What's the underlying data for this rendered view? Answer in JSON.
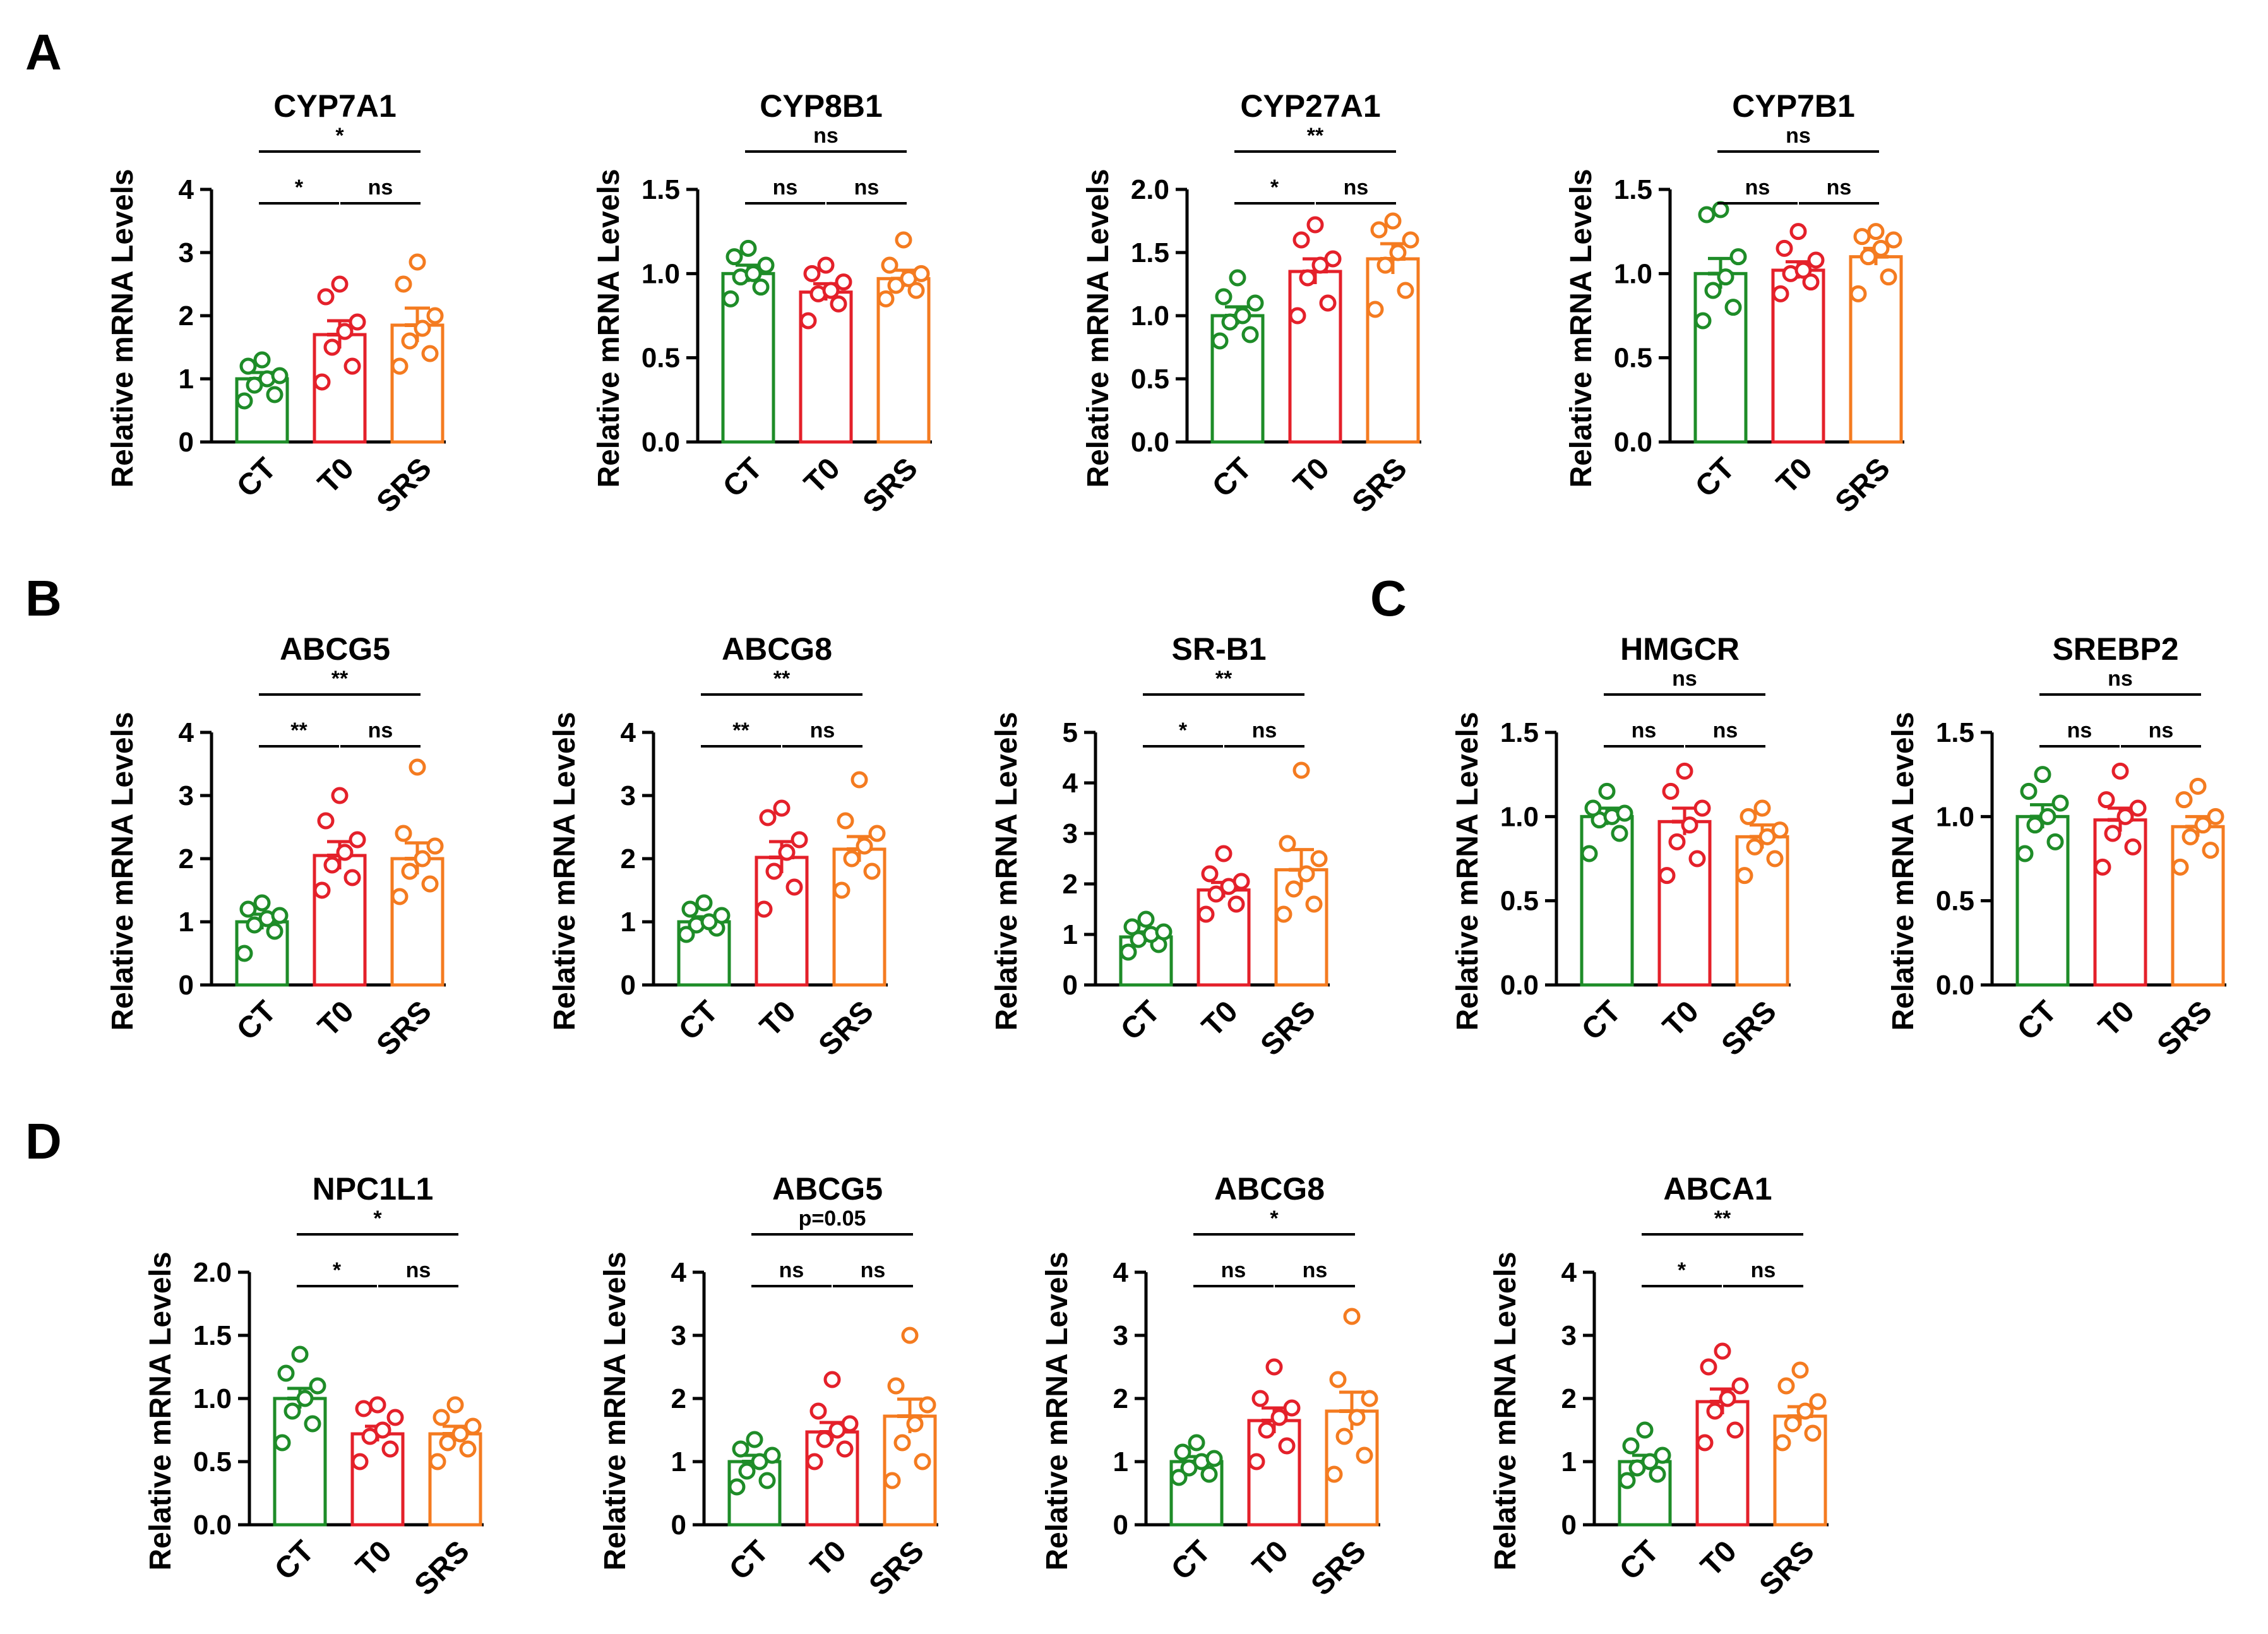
{
  "panel_labels": [
    "A",
    "B",
    "C",
    "D"
  ],
  "colors": {
    "CT": "#1e8c28",
    "T0": "#e4202a",
    "SRS": "#f47b20"
  },
  "chart_data": [
    {
      "type": "bar",
      "panel": "A",
      "title": "CYP7A1",
      "ylabel": "Relative mRNA Levels",
      "ylim": [
        0,
        4
      ],
      "yticks": [
        "0",
        "1",
        "2",
        "3",
        "4"
      ],
      "categories": [
        "CT",
        "T0",
        "SRS"
      ],
      "values": [
        1.0,
        1.7,
        1.85
      ],
      "errors": [
        0.1,
        0.22,
        0.27
      ],
      "points": [
        [
          0.65,
          0.75,
          0.9,
          1.0,
          1.05,
          1.2,
          1.3
        ],
        [
          0.95,
          1.2,
          1.5,
          1.75,
          1.9,
          2.3,
          2.5
        ],
        [
          1.2,
          1.4,
          1.6,
          1.8,
          2.0,
          2.5,
          2.85
        ]
      ],
      "significance": [
        {
          "label": "*",
          "from": 0,
          "to": 1
        },
        {
          "label": "ns",
          "from": 1,
          "to": 2
        },
        {
          "label": "*",
          "from": 0,
          "to": 2
        }
      ]
    },
    {
      "type": "bar",
      "panel": "A",
      "title": "CYP8B1",
      "ylabel": "Relative mRNA Levels",
      "ylim": [
        0,
        1.5
      ],
      "yticks": [
        "0.0",
        "0.5",
        "1.0",
        "1.5"
      ],
      "categories": [
        "CT",
        "T0",
        "SRS"
      ],
      "values": [
        1.0,
        0.89,
        0.97
      ],
      "errors": [
        0.05,
        0.05,
        0.05
      ],
      "points": [
        [
          0.85,
          0.92,
          0.98,
          1.0,
          1.05,
          1.1,
          1.15
        ],
        [
          0.72,
          0.82,
          0.88,
          0.9,
          0.95,
          1.0,
          1.05
        ],
        [
          0.85,
          0.9,
          0.93,
          0.97,
          1.0,
          1.05,
          1.2
        ]
      ],
      "significance": [
        {
          "label": "ns",
          "from": 0,
          "to": 1
        },
        {
          "label": "ns",
          "from": 1,
          "to": 2
        },
        {
          "label": "ns",
          "from": 0,
          "to": 2
        }
      ]
    },
    {
      "type": "bar",
      "panel": "A",
      "title": "CYP27A1",
      "ylabel": "Relative mRNA Levels",
      "ylim": [
        0,
        2.0
      ],
      "yticks": [
        "0.0",
        "0.5",
        "1.0",
        "1.5",
        "2.0"
      ],
      "categories": [
        "CT",
        "T0",
        "SRS"
      ],
      "values": [
        1.0,
        1.35,
        1.45
      ],
      "errors": [
        0.07,
        0.1,
        0.12
      ],
      "points": [
        [
          0.8,
          0.85,
          0.95,
          1.0,
          1.1,
          1.15,
          1.3
        ],
        [
          1.0,
          1.1,
          1.3,
          1.4,
          1.45,
          1.6,
          1.72
        ],
        [
          1.05,
          1.2,
          1.4,
          1.5,
          1.6,
          1.68,
          1.75
        ]
      ],
      "significance": [
        {
          "label": "*",
          "from": 0,
          "to": 1
        },
        {
          "label": "ns",
          "from": 1,
          "to": 2
        },
        {
          "label": "**",
          "from": 0,
          "to": 2
        }
      ]
    },
    {
      "type": "bar",
      "panel": "A",
      "title": "CYP7B1",
      "ylabel": "Relative mRNA Levels",
      "ylim": [
        0,
        1.5
      ],
      "yticks": [
        "0.0",
        "0.5",
        "1.0",
        "1.5"
      ],
      "categories": [
        "CT",
        "T0",
        "SRS"
      ],
      "values": [
        1.0,
        1.02,
        1.1
      ],
      "errors": [
        0.09,
        0.05,
        0.05
      ],
      "points": [
        [
          0.72,
          0.8,
          0.9,
          0.98,
          1.1,
          1.35,
          1.38
        ],
        [
          0.88,
          0.95,
          1.0,
          1.02,
          1.08,
          1.15,
          1.25
        ],
        [
          0.88,
          0.98,
          1.1,
          1.15,
          1.2,
          1.22,
          1.25
        ]
      ],
      "significance": [
        {
          "label": "ns",
          "from": 0,
          "to": 1
        },
        {
          "label": "ns",
          "from": 1,
          "to": 2
        },
        {
          "label": "ns",
          "from": 0,
          "to": 2
        }
      ]
    },
    {
      "type": "bar",
      "panel": "B",
      "title": "ABCG5",
      "ylabel": "Relative mRNA Levels",
      "ylim": [
        0,
        4
      ],
      "yticks": [
        "0",
        "1",
        "2",
        "3",
        "4"
      ],
      "categories": [
        "CT",
        "T0",
        "SRS"
      ],
      "values": [
        1.0,
        2.05,
        2.0
      ],
      "errors": [
        0.12,
        0.22,
        0.25
      ],
      "points": [
        [
          0.5,
          0.85,
          0.95,
          1.05,
          1.1,
          1.2,
          1.3
        ],
        [
          1.5,
          1.7,
          1.9,
          2.1,
          2.3,
          2.6,
          3.0
        ],
        [
          1.4,
          1.6,
          1.8,
          2.0,
          2.2,
          2.4,
          3.45
        ]
      ],
      "significance": [
        {
          "label": "**",
          "from": 0,
          "to": 1
        },
        {
          "label": "ns",
          "from": 1,
          "to": 2
        },
        {
          "label": "**",
          "from": 0,
          "to": 2
        }
      ]
    },
    {
      "type": "bar",
      "panel": "B",
      "title": "ABCG8",
      "ylabel": "Relative mRNA Levels",
      "ylim": [
        0,
        4
      ],
      "yticks": [
        "0",
        "1",
        "2",
        "3",
        "4"
      ],
      "categories": [
        "CT",
        "T0",
        "SRS"
      ],
      "values": [
        1.0,
        2.02,
        2.15
      ],
      "errors": [
        0.08,
        0.25,
        0.2
      ],
      "points": [
        [
          0.8,
          0.9,
          0.95,
          1.0,
          1.1,
          1.2,
          1.3
        ],
        [
          1.2,
          1.55,
          1.8,
          2.1,
          2.3,
          2.65,
          2.8
        ],
        [
          1.5,
          1.8,
          2.0,
          2.2,
          2.4,
          2.6,
          3.25
        ]
      ],
      "significance": [
        {
          "label": "**",
          "from": 0,
          "to": 1
        },
        {
          "label": "ns",
          "from": 1,
          "to": 2
        },
        {
          "label": "**",
          "from": 0,
          "to": 2
        }
      ]
    },
    {
      "type": "bar",
      "panel": "B",
      "title": "SR-B1",
      "ylabel": "Relative mRNA Levels",
      "ylim": [
        0,
        5
      ],
      "yticks": [
        "0",
        "1",
        "2",
        "3",
        "4",
        "5"
      ],
      "categories": [
        "CT",
        "T0",
        "SRS"
      ],
      "values": [
        0.95,
        1.88,
        2.28
      ],
      "errors": [
        0.1,
        0.15,
        0.4
      ],
      "points": [
        [
          0.65,
          0.8,
          0.9,
          1.0,
          1.05,
          1.15,
          1.3
        ],
        [
          1.4,
          1.6,
          1.8,
          1.95,
          2.05,
          2.2,
          2.6
        ],
        [
          1.4,
          1.6,
          1.9,
          2.2,
          2.5,
          2.8,
          4.25
        ]
      ],
      "significance": [
        {
          "label": "*",
          "from": 0,
          "to": 1
        },
        {
          "label": "ns",
          "from": 1,
          "to": 2
        },
        {
          "label": "**",
          "from": 0,
          "to": 2
        }
      ]
    },
    {
      "type": "bar",
      "panel": "C",
      "title": "HMGCR",
      "ylabel": "Relative mRNA Levels",
      "ylim": [
        0,
        1.5
      ],
      "yticks": [
        "0.0",
        "0.5",
        "1.0",
        "1.5"
      ],
      "categories": [
        "CT",
        "T0",
        "SRS"
      ],
      "values": [
        1.0,
        0.97,
        0.88
      ],
      "errors": [
        0.05,
        0.08,
        0.07
      ],
      "points": [
        [
          0.78,
          0.9,
          0.98,
          1.0,
          1.02,
          1.05,
          1.15
        ],
        [
          0.65,
          0.75,
          0.85,
          0.95,
          1.05,
          1.15,
          1.27
        ],
        [
          0.65,
          0.75,
          0.82,
          0.88,
          0.92,
          1.0,
          1.05
        ]
      ],
      "significance": [
        {
          "label": "ns",
          "from": 0,
          "to": 1
        },
        {
          "label": "ns",
          "from": 1,
          "to": 2
        },
        {
          "label": "ns",
          "from": 0,
          "to": 2
        }
      ]
    },
    {
      "type": "bar",
      "panel": "C",
      "title": "SREBP2",
      "ylabel": "Relative mRNA Levels",
      "ylim": [
        0,
        1.5
      ],
      "yticks": [
        "0.0",
        "0.5",
        "1.0",
        "1.5"
      ],
      "categories": [
        "CT",
        "T0",
        "SRS"
      ],
      "values": [
        1.0,
        0.98,
        0.94
      ],
      "errors": [
        0.07,
        0.07,
        0.06
      ],
      "points": [
        [
          0.78,
          0.85,
          0.95,
          1.0,
          1.08,
          1.15,
          1.25
        ],
        [
          0.7,
          0.82,
          0.9,
          1.0,
          1.05,
          1.1,
          1.27
        ],
        [
          0.7,
          0.8,
          0.88,
          0.95,
          1.0,
          1.1,
          1.18
        ]
      ],
      "significance": [
        {
          "label": "ns",
          "from": 0,
          "to": 1
        },
        {
          "label": "ns",
          "from": 1,
          "to": 2
        },
        {
          "label": "ns",
          "from": 0,
          "to": 2
        }
      ]
    },
    {
      "type": "bar",
      "panel": "D",
      "title": "NPC1L1",
      "ylabel": "Relative mRNA Levels",
      "ylim": [
        0,
        2.0
      ],
      "yticks": [
        "0.0",
        "0.5",
        "1.0",
        "1.5",
        "2.0"
      ],
      "categories": [
        "CT",
        "T0",
        "SRS"
      ],
      "values": [
        1.0,
        0.72,
        0.72
      ],
      "errors": [
        0.08,
        0.06,
        0.06
      ],
      "points": [
        [
          0.65,
          0.8,
          0.9,
          1.0,
          1.1,
          1.2,
          1.35
        ],
        [
          0.5,
          0.6,
          0.7,
          0.75,
          0.85,
          0.92,
          0.95
        ],
        [
          0.5,
          0.6,
          0.65,
          0.72,
          0.78,
          0.85,
          0.95
        ]
      ],
      "significance": [
        {
          "label": "*",
          "from": 0,
          "to": 1
        },
        {
          "label": "ns",
          "from": 1,
          "to": 2
        },
        {
          "label": "*",
          "from": 0,
          "to": 2
        }
      ]
    },
    {
      "type": "bar",
      "panel": "D",
      "title": "ABCG5",
      "ylabel": "Relative mRNA Levels",
      "ylim": [
        0,
        4
      ],
      "yticks": [
        "0",
        "1",
        "2",
        "3",
        "4"
      ],
      "categories": [
        "CT",
        "T0",
        "SRS"
      ],
      "values": [
        1.0,
        1.47,
        1.72
      ],
      "errors": [
        0.1,
        0.15,
        0.27
      ],
      "points": [
        [
          0.6,
          0.7,
          0.85,
          1.0,
          1.1,
          1.2,
          1.35
        ],
        [
          1.0,
          1.2,
          1.35,
          1.5,
          1.6,
          1.8,
          2.3
        ],
        [
          0.7,
          1.0,
          1.3,
          1.6,
          1.9,
          2.2,
          3.0
        ]
      ],
      "significance": [
        {
          "label": "ns",
          "from": 0,
          "to": 1
        },
        {
          "label": "ns",
          "from": 1,
          "to": 2
        },
        {
          "label": "p=0.05",
          "from": 0,
          "to": 2
        }
      ]
    },
    {
      "type": "bar",
      "panel": "D",
      "title": "ABCG8",
      "ylabel": "Relative mRNA Levels",
      "ylim": [
        0,
        4
      ],
      "yticks": [
        "0",
        "1",
        "2",
        "3",
        "4"
      ],
      "categories": [
        "CT",
        "T0",
        "SRS"
      ],
      "values": [
        1.0,
        1.65,
        1.8
      ],
      "errors": [
        0.08,
        0.2,
        0.3
      ],
      "points": [
        [
          0.75,
          0.8,
          0.9,
          1.0,
          1.05,
          1.15,
          1.3
        ],
        [
          1.0,
          1.25,
          1.5,
          1.7,
          1.85,
          2.0,
          2.5
        ],
        [
          0.8,
          1.1,
          1.4,
          1.7,
          2.0,
          2.3,
          3.3
        ]
      ],
      "significance": [
        {
          "label": "ns",
          "from": 0,
          "to": 1
        },
        {
          "label": "ns",
          "from": 1,
          "to": 2
        },
        {
          "label": "*",
          "from": 0,
          "to": 2
        }
      ]
    },
    {
      "type": "bar",
      "panel": "D",
      "title": "ABCA1",
      "ylabel": "Relative mRNA Levels",
      "ylim": [
        0,
        4
      ],
      "yticks": [
        "0",
        "1",
        "2",
        "3",
        "4"
      ],
      "categories": [
        "CT",
        "T0",
        "SRS"
      ],
      "values": [
        1.0,
        1.95,
        1.72
      ],
      "errors": [
        0.1,
        0.2,
        0.15
      ],
      "points": [
        [
          0.7,
          0.8,
          0.9,
          1.0,
          1.1,
          1.25,
          1.5
        ],
        [
          1.3,
          1.5,
          1.8,
          2.0,
          2.2,
          2.5,
          2.75
        ],
        [
          1.3,
          1.45,
          1.6,
          1.8,
          1.95,
          2.2,
          2.45
        ]
      ],
      "significance": [
        {
          "label": "*",
          "from": 0,
          "to": 1
        },
        {
          "label": "ns",
          "from": 1,
          "to": 2
        },
        {
          "label": "**",
          "from": 0,
          "to": 2
        }
      ]
    }
  ]
}
